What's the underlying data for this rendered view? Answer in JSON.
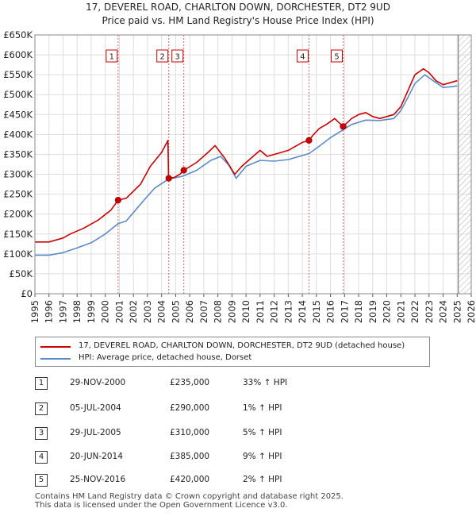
{
  "chart_data": {
    "type": "line",
    "title": "17, DEVEREL ROAD, CHARLTON DOWN, DORCHESTER, DT2 9UD",
    "subtitle": "Price paid vs. HM Land Registry's House Price Index (HPI)",
    "xlim": [
      1995,
      2026
    ],
    "ylim": [
      0,
      650000
    ],
    "x_ticks": [
      "1995",
      "1996",
      "1997",
      "1998",
      "1999",
      "2000",
      "2001",
      "2002",
      "2003",
      "2004",
      "2005",
      "2006",
      "2007",
      "2008",
      "2009",
      "2010",
      "2011",
      "2012",
      "2013",
      "2014",
      "2015",
      "2016",
      "2017",
      "2018",
      "2019",
      "2020",
      "2021",
      "2022",
      "2023",
      "2024",
      "2025",
      "2026"
    ],
    "y_ticks": [
      {
        "value": 0,
        "label": "£0"
      },
      {
        "value": 50000,
        "label": "£50K"
      },
      {
        "value": 100000,
        "label": "£100K"
      },
      {
        "value": 150000,
        "label": "£150K"
      },
      {
        "value": 200000,
        "label": "£200K"
      },
      {
        "value": 250000,
        "label": "£250K"
      },
      {
        "value": 300000,
        "label": "£300K"
      },
      {
        "value": 350000,
        "label": "£350K"
      },
      {
        "value": 400000,
        "label": "£400K"
      },
      {
        "value": 450000,
        "label": "£450K"
      },
      {
        "value": 500000,
        "label": "£500K"
      },
      {
        "value": 550000,
        "label": "£550K"
      },
      {
        "value": 600000,
        "label": "£600K"
      },
      {
        "value": 650000,
        "label": "£650K"
      }
    ],
    "future_shade_from": 2025.08,
    "series": [
      {
        "name": "17, DEVEREL ROAD, CHARLTON DOWN, DORCHESTER, DT2 9UD (detached house)",
        "color": "#cc0000",
        "x": [
          1995.0,
          1996.0,
          1997.0,
          1997.5,
          1998.5,
          1999.5,
          2000.4,
          2000.91,
          2001.5,
          2002.5,
          2003.2,
          2004.0,
          2004.45,
          2004.5,
          2004.9,
          2005.3,
          2005.58,
          2006.5,
          2007.3,
          2007.8,
          2008.5,
          2009.2,
          2009.7,
          2010.5,
          2011.0,
          2011.5,
          2012.0,
          2012.5,
          2013.0,
          2013.5,
          2014.0,
          2014.47,
          2014.8,
          2015.2,
          2015.7,
          2016.3,
          2016.9,
          2017.5,
          2018.0,
          2018.5,
          2019.0,
          2019.5,
          2020.0,
          2020.5,
          2021.0,
          2021.5,
          2022.0,
          2022.6,
          2023.0,
          2023.5,
          2024.0,
          2024.5,
          2025.0
        ],
        "y": [
          130000,
          130000,
          140000,
          150000,
          165000,
          185000,
          210000,
          235000,
          240000,
          275000,
          320000,
          355000,
          385000,
          290000,
          292000,
          300000,
          310000,
          330000,
          355000,
          372000,
          340000,
          300000,
          320000,
          345000,
          360000,
          345000,
          350000,
          355000,
          360000,
          370000,
          380000,
          385000,
          400000,
          415000,
          425000,
          440000,
          420000,
          440000,
          450000,
          455000,
          445000,
          440000,
          445000,
          450000,
          470000,
          510000,
          550000,
          565000,
          555000,
          535000,
          525000,
          530000,
          535000
        ]
      },
      {
        "name": "HPI: Average price, detached house, Dorset",
        "color": "#5b8bc9",
        "x": [
          1995.0,
          1996.0,
          1997.0,
          1998.0,
          1999.0,
          2000.0,
          2000.91,
          2001.5,
          2002.5,
          2003.5,
          2004.5,
          2005.5,
          2006.5,
          2007.5,
          2008.2,
          2008.8,
          2009.3,
          2010.0,
          2011.0,
          2012.0,
          2013.0,
          2014.47,
          2015.0,
          2016.0,
          2016.9,
          2017.5,
          2018.5,
          2019.5,
          2020.5,
          2021.0,
          2021.5,
          2022.0,
          2022.7,
          2023.3,
          2024.0,
          2024.6,
          2025.0
        ],
        "y": [
          97000,
          97000,
          103000,
          115000,
          128000,
          150000,
          176000,
          183000,
          225000,
          265000,
          288000,
          295000,
          310000,
          335000,
          345000,
          322000,
          290000,
          320000,
          335000,
          333000,
          337000,
          352000,
          365000,
          392000,
          412000,
          425000,
          436000,
          435000,
          440000,
          460000,
          493000,
          528000,
          550000,
          535000,
          518000,
          520000,
          522000
        ]
      }
    ],
    "transactions": [
      {
        "id": "1",
        "date": "29-NOV-2000",
        "x": 2000.91,
        "price": 235000,
        "price_label": "£235,000",
        "hpi": "33% ↑ HPI"
      },
      {
        "id": "2",
        "date": "05-JUL-2004",
        "x": 2004.51,
        "price": 290000,
        "price_label": "£290,000",
        "hpi": "1% ↑ HPI"
      },
      {
        "id": "3",
        "date": "29-JUL-2005",
        "x": 2005.58,
        "price": 310000,
        "price_label": "£310,000",
        "hpi": "5% ↑ HPI"
      },
      {
        "id": "4",
        "date": "20-JUN-2014",
        "x": 2014.47,
        "price": 385000,
        "price_label": "£385,000",
        "hpi": "9% ↑ HPI"
      },
      {
        "id": "5",
        "date": "25-NOV-2016",
        "x": 2016.9,
        "price": 420000,
        "price_label": "£420,000",
        "hpi": "2% ↑ HPI"
      }
    ]
  },
  "footer": {
    "line1": "Contains HM Land Registry data © Crown copyright and database right 2025.",
    "line2": "This data is licensed under the Open Government Licence v3.0."
  }
}
